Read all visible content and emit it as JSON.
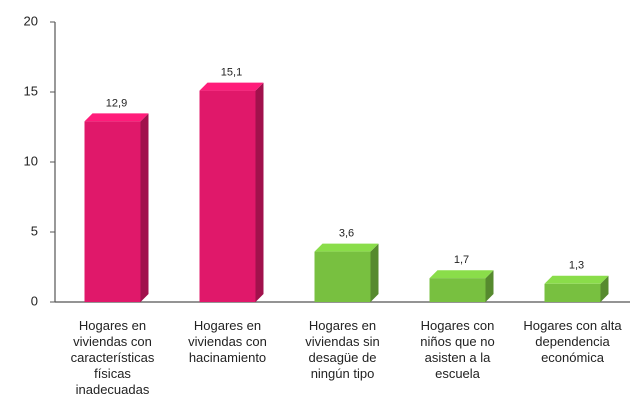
{
  "chart_data": {
    "type": "bar3d",
    "categories": [
      "Hogares en viviendas con características físicas inadecuadas",
      "Hogares en viviendas con hacinamiento",
      "Hogares en viviendas sin desagüe de ningún tipo",
      "Hogares con niños que no asisten a la escuela",
      "Hogares con alta dependencia económica"
    ],
    "values": [
      12.9,
      15.1,
      3.6,
      1.7,
      1.3
    ],
    "value_labels": [
      "12,9",
      "15,1",
      "3,6",
      "1,7",
      "1,3"
    ],
    "colors": [
      "#e0186a",
      "#e0186a",
      "#78c040",
      "#78c040",
      "#78c040"
    ],
    "ylim": [
      0,
      20
    ],
    "yticks": [
      0,
      5,
      10,
      15,
      20
    ]
  }
}
